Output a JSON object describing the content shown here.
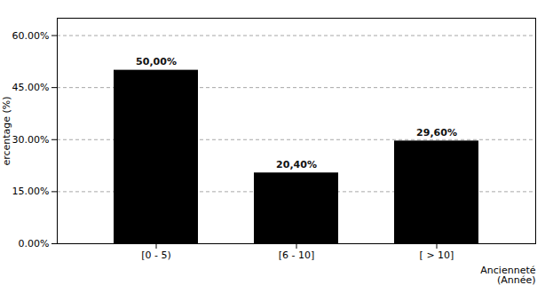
{
  "chart_data": {
    "type": "bar",
    "categories": [
      "[0 - 5)",
      "[6 - 10]",
      "[ > 10]"
    ],
    "values": [
      50.0,
      20.4,
      29.6
    ],
    "value_labels": [
      "50,00%",
      "20,40%",
      "29,60%"
    ],
    "data_labels": true,
    "ylabel": "ercentage (%)",
    "xlabel": "Ancienneté\n(Année)",
    "ylim": [
      0,
      65
    ],
    "yticks": [
      {
        "value": 0,
        "label": "0.00%"
      },
      {
        "value": 15,
        "label": "15.00%"
      },
      {
        "value": 30,
        "label": "30.00%"
      },
      {
        "value": 45,
        "label": "45.00%"
      },
      {
        "value": 60,
        "label": "60.00%"
      }
    ],
    "grid": true
  }
}
